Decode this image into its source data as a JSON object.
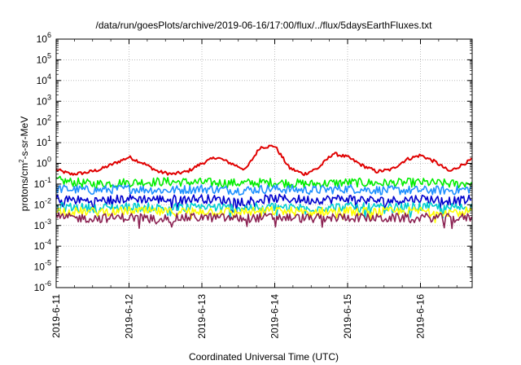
{
  "chart_data": {
    "type": "line",
    "title": "/data/run/goesPlots/archive/2019-06-16/17:00/flux/../flux/5daysEarthFluxes.txt",
    "xlabel": "Coordinated Universal Time (UTC)",
    "ylabel_main": "protons/cm",
    "ylabel_sup": "2",
    "ylabel_tail": "-s-sr-MeV",
    "y_scale": "log",
    "ylim_exponents": [
      -6,
      6
    ],
    "y_base": "10",
    "y_tick_exponents": [
      "-6",
      "-5",
      "-4",
      "-3",
      "-2",
      "-1",
      "0",
      "1",
      "2",
      "3",
      "4",
      "5",
      "6"
    ],
    "x_start": "2019-06-11",
    "x_end": "2019-06-16 ~17:00",
    "x_ticks": [
      "2019-6-11",
      "2019-6-12",
      "2019-6-13",
      "2019-6-14",
      "2019-6-15",
      "2019-6-16"
    ],
    "grid": true,
    "series": [
      {
        "color": "#e00000",
        "days": [
          0.0,
          0.2,
          0.4,
          0.6,
          0.8,
          1.0,
          1.2,
          1.4,
          1.6,
          1.8,
          2.0,
          2.2,
          2.4,
          2.6,
          2.8,
          3.0,
          3.2,
          3.4,
          3.6,
          3.8,
          4.0,
          4.2,
          4.4,
          4.6,
          4.8,
          5.0,
          5.2,
          5.4,
          5.7
        ],
        "values": [
          0.5,
          0.3,
          0.35,
          0.5,
          1.0,
          2.0,
          1.0,
          0.4,
          0.3,
          0.4,
          1.0,
          2.0,
          1.0,
          0.5,
          6.0,
          7.0,
          0.6,
          0.3,
          0.6,
          3.0,
          2.0,
          0.8,
          0.4,
          0.5,
          1.5,
          2.5,
          1.2,
          0.4,
          1.5
        ]
      },
      {
        "color": "#00ee00",
        "days": [
          0.0,
          0.5,
          1.0,
          1.5,
          2.0,
          2.5,
          3.0,
          3.5,
          4.0,
          4.5,
          5.0,
          5.5,
          5.7
        ],
        "values": [
          0.15,
          0.1,
          0.12,
          0.13,
          0.12,
          0.11,
          0.12,
          0.1,
          0.12,
          0.11,
          0.12,
          0.1,
          0.12
        ]
      },
      {
        "color": "#1e90ff",
        "days": [
          0.0,
          0.5,
          1.0,
          1.5,
          2.0,
          2.5,
          3.0,
          3.5,
          4.0,
          4.5,
          5.0,
          5.5,
          5.7
        ],
        "values": [
          0.06,
          0.05,
          0.06,
          0.05,
          0.06,
          0.05,
          0.06,
          0.05,
          0.06,
          0.05,
          0.05,
          0.05,
          0.06
        ]
      },
      {
        "color": "#0000cd",
        "days": [
          0.0,
          0.5,
          1.0,
          1.5,
          2.0,
          2.5,
          3.0,
          3.5,
          4.0,
          4.5,
          5.0,
          5.5,
          5.7
        ],
        "values": [
          0.02,
          0.015,
          0.02,
          0.018,
          0.02,
          0.015,
          0.02,
          0.017,
          0.02,
          0.015,
          0.02,
          0.015,
          0.018
        ]
      },
      {
        "color": "#00ced1",
        "days": [
          0.0,
          0.5,
          1.0,
          1.5,
          2.0,
          2.5,
          3.0,
          3.5,
          4.0,
          4.5,
          5.0,
          5.5,
          5.7
        ],
        "values": [
          0.008,
          0.007,
          0.008,
          0.007,
          0.008,
          0.007,
          0.008,
          0.007,
          0.008,
          0.007,
          0.008,
          0.007,
          0.008
        ]
      },
      {
        "color": "#ffff00",
        "days": [
          0.0,
          0.5,
          1.0,
          1.5,
          2.0,
          2.5,
          3.0,
          3.5,
          4.0,
          4.5,
          5.0,
          5.5,
          5.7
        ],
        "values": [
          0.005,
          0.0045,
          0.005,
          0.0045,
          0.005,
          0.0045,
          0.005,
          0.0045,
          0.005,
          0.0045,
          0.005,
          0.0045,
          0.005
        ]
      },
      {
        "color": "#8b2252",
        "days": [
          0.0,
          0.5,
          1.0,
          1.5,
          2.0,
          2.5,
          3.0,
          3.5,
          4.0,
          4.5,
          5.0,
          5.5,
          5.7
        ],
        "values": [
          0.0025,
          0.0022,
          0.0025,
          0.0022,
          0.0025,
          0.0022,
          0.0025,
          0.0022,
          0.0025,
          0.0022,
          0.0025,
          0.0022,
          0.0025
        ]
      }
    ]
  }
}
